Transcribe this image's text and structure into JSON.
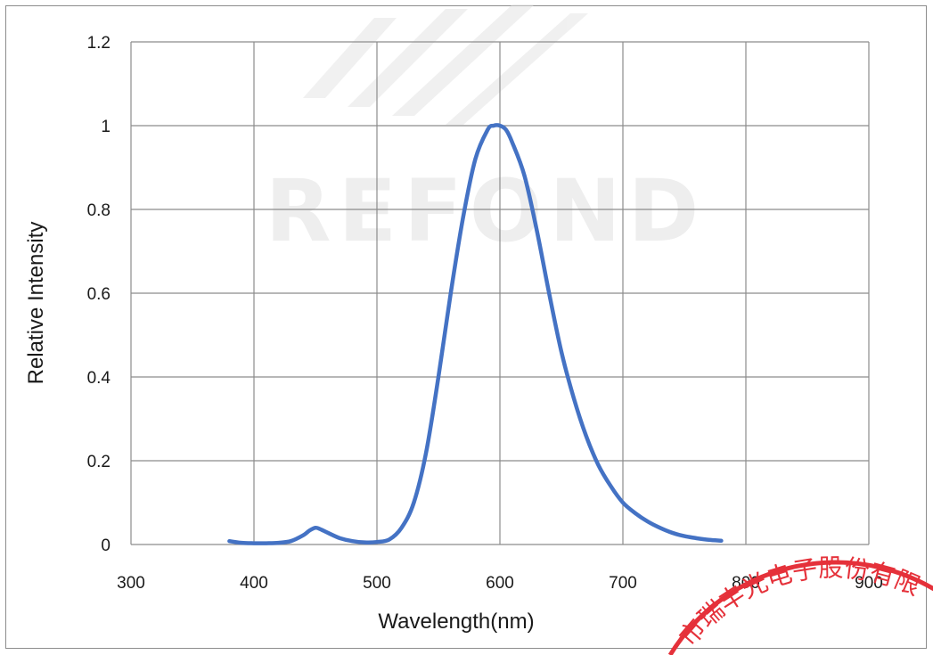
{
  "watermark": {
    "text": "REFOND"
  },
  "seal": {
    "text": "市瑞丰光电子股份有限"
  },
  "colors": {
    "line": "#4472c4",
    "grid": "#8c8c8c",
    "seal": "#e5313a"
  },
  "chart_data": {
    "type": "line",
    "title": "",
    "xlabel": "Wavelength(nm)",
    "ylabel": "Relative Intensity",
    "xlim": [
      300,
      900
    ],
    "ylim": [
      0,
      1.2
    ],
    "xticks": [
      300,
      400,
      500,
      600,
      700,
      800,
      900
    ],
    "yticks": [
      0,
      0.2,
      0.4,
      0.6,
      0.8,
      1,
      1.2
    ],
    "ytick_labels": [
      "0",
      "0.2",
      "0.4",
      "0.6",
      "0.8",
      "1",
      "1.2"
    ],
    "grid": true,
    "legend": "none",
    "series": [
      {
        "x": [
          380,
          390,
          400,
          410,
          420,
          430,
          440,
          445,
          450,
          455,
          460,
          470,
          480,
          490,
          500,
          510,
          520,
          530,
          540,
          550,
          560,
          570,
          580,
          590,
          595,
          600,
          605,
          610,
          620,
          630,
          640,
          650,
          660,
          670,
          680,
          690,
          700,
          710,
          720,
          730,
          740,
          750,
          760,
          770,
          780
        ],
        "y": [
          0.008,
          0.004,
          0.003,
          0.003,
          0.004,
          0.008,
          0.022,
          0.033,
          0.04,
          0.035,
          0.028,
          0.015,
          0.008,
          0.005,
          0.006,
          0.012,
          0.04,
          0.1,
          0.22,
          0.4,
          0.6,
          0.78,
          0.92,
          0.99,
          1.0,
          1.0,
          0.99,
          0.96,
          0.88,
          0.75,
          0.6,
          0.46,
          0.35,
          0.26,
          0.19,
          0.14,
          0.1,
          0.075,
          0.055,
          0.04,
          0.028,
          0.02,
          0.015,
          0.011,
          0.009
        ]
      }
    ]
  }
}
